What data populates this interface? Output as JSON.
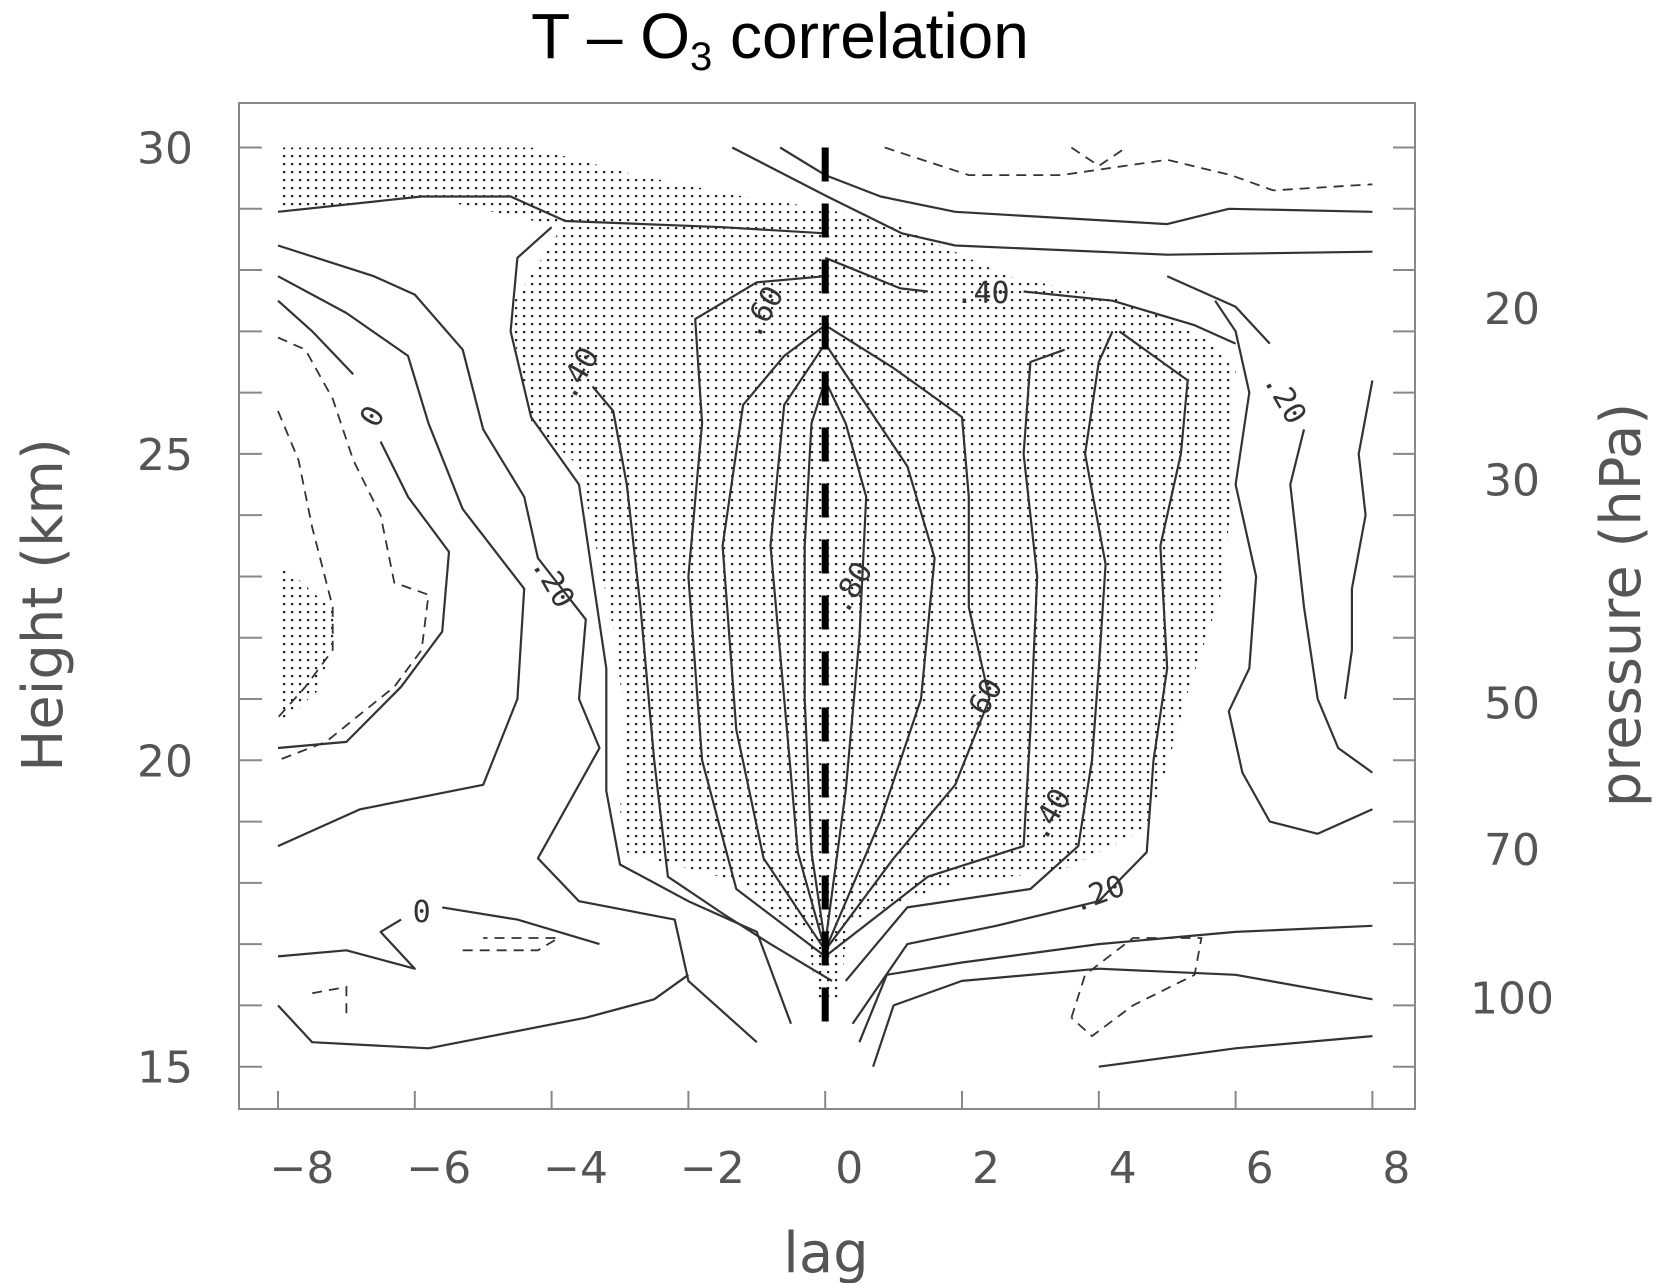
{
  "chart_data": {
    "type": "contour",
    "title": "T – O",
    "title_subscript": "3",
    "title_suffix": " correlation",
    "xlabel": "lag",
    "ylabel": "Height (km)",
    "ylabel_right": "pressure (hPa)",
    "xlim": [
      -9,
      9.4
    ],
    "ylim": [
      14.3,
      30.7
    ],
    "x_ticks": [
      -8,
      -6,
      -4,
      -2,
      0,
      2,
      4,
      6,
      8
    ],
    "x_tick_labels": [
      "−8",
      "−6",
      "−4",
      "−2",
      "0",
      "2",
      "4",
      "6",
      "8"
    ],
    "y_ticks": [
      15,
      20,
      25,
      30
    ],
    "y_tick_labels": [
      "15",
      "20",
      "25",
      "30"
    ],
    "y_minor_ticks": [
      15,
      16,
      17,
      18,
      19,
      20,
      21,
      22,
      23,
      24,
      25,
      26,
      27,
      28,
      29,
      30
    ],
    "right_ticks": [
      {
        "label": "20",
        "km": 27.38
      },
      {
        "label": "30",
        "km": 24.58
      },
      {
        "label": "50",
        "km": 20.94
      },
      {
        "label": "70",
        "km": 18.55
      },
      {
        "label": "100",
        "km": 16.13
      }
    ],
    "grid": false,
    "stipple_regions": [
      [
        [
          -7.95,
          30
        ],
        [
          -4.3,
          30
        ],
        [
          -2.76,
          29.55
        ],
        [
          -1.2,
          29.2
        ],
        [
          0,
          29.0
        ],
        [
          1.12,
          28.7
        ],
        [
          2.67,
          27.9
        ],
        [
          4.23,
          27.55
        ],
        [
          5.0,
          27.2
        ],
        [
          5.62,
          26.85
        ],
        [
          6.0,
          26.35
        ],
        [
          5.93,
          25.5
        ],
        [
          5.93,
          24.1
        ],
        [
          5.78,
          22.7
        ],
        [
          5.31,
          21.15
        ],
        [
          5.0,
          19.9
        ],
        [
          4.7,
          18.9
        ],
        [
          3.45,
          18.2
        ],
        [
          1.9,
          18.0
        ],
        [
          1.12,
          17.7
        ],
        [
          0.34,
          17.35
        ],
        [
          0.2,
          16.1
        ],
        [
          -0.12,
          16.1
        ],
        [
          -0.27,
          17.2
        ],
        [
          -0.74,
          17.5
        ],
        [
          -1.2,
          18.0
        ],
        [
          -2.9,
          18.5
        ],
        [
          -3.0,
          19.2
        ],
        [
          -2.9,
          20.3
        ],
        [
          -3.07,
          22.0
        ],
        [
          -3.6,
          24.8
        ],
        [
          -4.3,
          25.5
        ],
        [
          -4.55,
          26.9
        ],
        [
          -4.6,
          27.4
        ],
        [
          -3.85,
          28.7
        ],
        [
          -5.86,
          29.2
        ],
        [
          -7.95,
          28.95
        ]
      ],
      [
        [
          -7.95,
          23.2
        ],
        [
          -7.1,
          22.35
        ],
        [
          -7.4,
          21.15
        ],
        [
          -7.95,
          20.6
        ]
      ]
    ],
    "reference_line": {
      "lag": 0,
      "km_range": [
        15.6,
        30
      ],
      "style": "thick-dashed"
    },
    "contours_solid": [
      [
        [
          0,
          17
        ],
        [
          -0.2,
          18.5
        ],
        [
          -0.3,
          21
        ],
        [
          -0.3,
          23.5
        ],
        [
          -0.2,
          25.5
        ],
        [
          0,
          26.2
        ],
        [
          0.3,
          25.5
        ],
        [
          0.6,
          24.3
        ],
        [
          0.5,
          22
        ],
        [
          0.3,
          19.5
        ],
        [
          0,
          17
        ]
      ],
      [
        [
          0,
          16.9
        ],
        [
          -0.4,
          18.5
        ],
        [
          -0.6,
          21
        ],
        [
          -0.8,
          23.5
        ],
        [
          -0.6,
          25.8
        ],
        [
          0,
          26.8
        ],
        [
          0.6,
          25.8
        ],
        [
          1.2,
          24.8
        ],
        [
          1.6,
          23.3
        ],
        [
          1.4,
          21
        ],
        [
          0.8,
          19
        ],
        [
          0,
          16.9
        ]
      ],
      [
        [
          0,
          16.9
        ],
        [
          -0.9,
          18.4
        ],
        [
          -1.3,
          20.5
        ],
        [
          -1.5,
          23.5
        ],
        [
          -1.2,
          25.8
        ],
        [
          -0.6,
          26.6
        ],
        [
          0,
          27.1
        ],
        [
          1.0,
          26.4
        ],
        [
          2.0,
          25.6
        ],
        [
          2.1,
          24.3
        ],
        [
          2.1,
          22.5
        ],
        [
          2.4,
          21
        ],
        [
          1.9,
          19.6
        ],
        [
          1.0,
          18.4
        ],
        [
          0,
          16.9
        ]
      ],
      [
        [
          0,
          16.8
        ],
        [
          -1.3,
          17.9
        ],
        [
          -1.8,
          20
        ],
        [
          -2.0,
          23
        ],
        [
          -1.8,
          25.5
        ],
        [
          -1.9,
          27.2
        ],
        [
          -1.0,
          27.8
        ],
        [
          0,
          27.9
        ]
      ],
      [
        [
          0,
          16.8
        ],
        [
          1.5,
          18.1
        ],
        [
          2.9,
          18.6
        ],
        [
          3.0,
          20.5
        ],
        [
          3.1,
          23
        ],
        [
          2.9,
          25
        ],
        [
          3.0,
          26.5
        ],
        [
          3.5,
          26.7
        ]
      ],
      [
        [
          0.1,
          16.4
        ],
        [
          -0.8,
          17.0
        ],
        [
          -1.5,
          17.5
        ],
        [
          -2.3,
          18.1
        ],
        [
          -2.5,
          20
        ],
        [
          -2.7,
          22.5
        ],
        [
          -2.9,
          24.5
        ],
        [
          -3.1,
          25.7
        ],
        [
          -3.4,
          26.1
        ]
      ],
      [
        [
          0.3,
          16.4
        ],
        [
          1.2,
          17.6
        ],
        [
          3.0,
          17.9
        ],
        [
          3.7,
          18.6
        ],
        [
          3.9,
          20
        ],
        [
          4.0,
          21.5
        ],
        [
          4.1,
          23.2
        ],
        [
          3.8,
          25
        ],
        [
          4.0,
          26.5
        ],
        [
          4.2,
          27
        ]
      ],
      [
        [
          -0.5,
          15.7
        ],
        [
          -1.0,
          17.2
        ],
        [
          -2.0,
          17.7
        ],
        [
          -3.0,
          18.3
        ],
        [
          -3.2,
          19.5
        ],
        [
          -3.2,
          21.5
        ],
        [
          -3.4,
          23
        ],
        [
          -3.6,
          24.5
        ],
        [
          -4.3,
          25.6
        ],
        [
          -4.6,
          27
        ],
        [
          -4.5,
          28.2
        ],
        [
          -4.0,
          28.7
        ]
      ],
      [
        [
          0.4,
          15.7
        ],
        [
          1.2,
          17.0
        ],
        [
          2.5,
          17.3
        ],
        [
          4.0,
          17.7
        ],
        [
          4.7,
          18.5
        ],
        [
          4.8,
          20
        ],
        [
          5.0,
          21.5
        ],
        [
          4.9,
          23.5
        ],
        [
          5.2,
          25
        ],
        [
          5.3,
          26.2
        ],
        [
          4.3,
          27.0
        ]
      ],
      [
        [
          0,
          28.2
        ],
        [
          1.1,
          27.7
        ],
        [
          1.5,
          27.65
        ]
      ],
      [
        [
          2.9,
          27.65
        ],
        [
          4.2,
          27.5
        ],
        [
          5.4,
          27.1
        ],
        [
          6.0,
          26.8
        ]
      ],
      [
        [
          5.0,
          27.9
        ],
        [
          6.0,
          27.4
        ],
        [
          6.5,
          26.8
        ]
      ],
      [
        [
          7.0,
          25.4
        ],
        [
          6.8,
          24.5
        ],
        [
          6.9,
          23.5
        ],
        [
          7.0,
          22.5
        ],
        [
          7.2,
          21
        ],
        [
          7.5,
          20.2
        ],
        [
          8,
          19.8
        ]
      ],
      [
        [
          -1.36,
          30
        ],
        [
          0.03,
          29.2
        ],
        [
          1.12,
          28.6
        ],
        [
          1.9,
          28.4
        ],
        [
          5,
          28.25
        ],
        [
          8,
          28.3
        ]
      ],
      [
        [
          -0.66,
          30
        ],
        [
          0,
          29.55
        ],
        [
          0.81,
          29.2
        ],
        [
          1.9,
          28.95
        ],
        [
          3.45,
          28.85
        ],
        [
          5,
          28.75
        ],
        [
          5.9,
          29.0
        ],
        [
          8,
          28.95
        ]
      ],
      [
        [
          -8,
          28.95
        ],
        [
          -5.9,
          29.2
        ],
        [
          -4.6,
          29.2
        ],
        [
          -3.8,
          28.8
        ],
        [
          -1.5,
          28.7
        ],
        [
          0,
          28.6
        ]
      ],
      [
        [
          5.7,
          27.5
        ],
        [
          6.0,
          27
        ],
        [
          6.2,
          26
        ],
        [
          6.0,
          24.5
        ],
        [
          6.3,
          23
        ],
        [
          6.2,
          21.5
        ],
        [
          5.9,
          20.8
        ],
        [
          6.1,
          19.8
        ],
        [
          6.5,
          19
        ],
        [
          7.2,
          18.8
        ],
        [
          8,
          19.2
        ]
      ],
      [
        [
          8,
          26.2
        ],
        [
          7.8,
          25
        ],
        [
          7.9,
          24
        ],
        [
          7.7,
          22.8
        ],
        [
          7.7,
          21.8
        ],
        [
          7.6,
          21
        ]
      ],
      [
        [
          0.5,
          15.4
        ],
        [
          0.9,
          16.5
        ],
        [
          2,
          16.7
        ],
        [
          4,
          17.0
        ],
        [
          6,
          17.2
        ],
        [
          8,
          17.3
        ]
      ],
      [
        [
          0.7,
          15.0
        ],
        [
          1.0,
          16.0
        ],
        [
          2.0,
          16.4
        ],
        [
          4.0,
          16.6
        ],
        [
          6.0,
          16.5
        ],
        [
          8,
          16.1
        ]
      ],
      [
        [
          4,
          15
        ],
        [
          6,
          15.3
        ],
        [
          8,
          15.5
        ]
      ],
      [
        [
          -8,
          28.4
        ],
        [
          -6.6,
          27.9
        ],
        [
          -6.0,
          27.6
        ],
        [
          -5.3,
          26.7
        ],
        [
          -5.0,
          25.4
        ],
        [
          -4.4,
          24.3
        ],
        [
          -4.2,
          23.3
        ],
        [
          -3.5,
          22.3
        ],
        [
          -3.6,
          21
        ],
        [
          -3.3,
          20.2
        ],
        [
          -4.2,
          18.4
        ],
        [
          -3.6,
          17.7
        ],
        [
          -2.2,
          17.4
        ],
        [
          -2.0,
          16.4
        ],
        [
          -1.0,
          15.4
        ]
      ],
      [
        [
          -8,
          27.9
        ],
        [
          -7.0,
          27.3
        ],
        [
          -6.1,
          26.6
        ],
        [
          -5.8,
          25.5
        ],
        [
          -5.3,
          24.1
        ],
        [
          -4.4,
          22.8
        ],
        [
          -4.5,
          21
        ],
        [
          -5.0,
          19.6
        ],
        [
          -6.8,
          19.2
        ],
        [
          -8,
          18.6
        ]
      ],
      [
        [
          -8,
          27.5
        ],
        [
          -7.5,
          27.0
        ],
        [
          -6.9,
          26.3
        ]
      ],
      [
        [
          -6.5,
          25.2
        ],
        [
          -6.1,
          24.3
        ],
        [
          -5.5,
          23.4
        ],
        [
          -5.6,
          22.1
        ],
        [
          -6.2,
          21.2
        ],
        [
          -7.0,
          20.3
        ],
        [
          -8,
          20.2
        ]
      ],
      [
        [
          -8,
          16.0
        ],
        [
          -7.5,
          15.4
        ],
        [
          -5.8,
          15.3
        ],
        [
          -3.5,
          15.8
        ],
        [
          -2.5,
          16.1
        ],
        [
          -2.0,
          16.5
        ]
      ],
      [
        [
          -8,
          16.8
        ],
        [
          -7,
          16.9
        ],
        [
          -6,
          16.6
        ],
        [
          -6.5,
          17.2
        ],
        [
          -6.2,
          17.4
        ]
      ],
      [
        [
          -5.6,
          17.6
        ],
        [
          -4.5,
          17.4
        ],
        [
          -3.3,
          17.0
        ]
      ]
    ],
    "contours_dashed": [
      [
        [
          0.87,
          30
        ],
        [
          2.1,
          29.55
        ],
        [
          3.45,
          29.55
        ],
        [
          5,
          29.8
        ],
        [
          5.93,
          29.55
        ],
        [
          6.55,
          29.3
        ],
        [
          8,
          29.4
        ]
      ],
      [
        [
          3.6,
          30
        ],
        [
          4.0,
          29.7
        ],
        [
          4.4,
          30
        ]
      ],
      [
        [
          -8,
          26.9
        ],
        [
          -7.6,
          26.7
        ],
        [
          -7.2,
          25.9
        ],
        [
          -6.9,
          24.9
        ],
        [
          -6.5,
          24.0
        ],
        [
          -6.3,
          22.9
        ],
        [
          -5.8,
          22.7
        ],
        [
          -5.9,
          21.8
        ],
        [
          -6.3,
          21.2
        ],
        [
          -7.3,
          20.3
        ],
        [
          -8,
          20.0
        ]
      ],
      [
        [
          -8,
          25.7
        ],
        [
          -7.7,
          24.9
        ],
        [
          -7.5,
          23.8
        ],
        [
          -7.2,
          22.5
        ],
        [
          -7.2,
          21.8
        ],
        [
          -7.6,
          21.2
        ],
        [
          -8,
          20.7
        ]
      ],
      [
        [
          3.6,
          15.8
        ],
        [
          3.8,
          16.5
        ],
        [
          4.5,
          17.1
        ],
        [
          5.5,
          17.1
        ],
        [
          5.4,
          16.5
        ],
        [
          4.5,
          16.0
        ],
        [
          3.9,
          15.5
        ],
        [
          3.6,
          15.8
        ]
      ],
      [
        [
          -5.3,
          16.9
        ],
        [
          -4.2,
          16.9
        ],
        [
          -3.9,
          17.1
        ],
        [
          -5.0,
          17.1
        ]
      ],
      [
        [
          -7.5,
          16.2
        ],
        [
          -7,
          16.3
        ],
        [
          -7,
          15.8
        ]
      ]
    ],
    "contour_labels": [
      {
        "text": ".40",
        "lag": -3.6,
        "km": 26.3,
        "angle": -60
      },
      {
        "text": "0",
        "lag": -6.6,
        "km": 25.6,
        "angle": -60
      },
      {
        "text": ".20",
        "lag": -4.0,
        "km": 22.9,
        "angle": 60
      },
      {
        "text": ".60",
        "lag": -0.9,
        "km": 27.3,
        "angle": -60
      },
      {
        "text": ".40",
        "lag": 2.3,
        "km": 27.6,
        "angle": 0
      },
      {
        "text": ".80",
        "lag": 0.4,
        "km": 22.8,
        "angle": -60
      },
      {
        "text": ".60",
        "lag": 2.3,
        "km": 20.9,
        "angle": -60
      },
      {
        "text": ".40",
        "lag": 3.3,
        "km": 19.1,
        "angle": -60
      },
      {
        "text": ".20",
        "lag": 4.0,
        "km": 17.8,
        "angle": -20
      },
      {
        "text": ".20",
        "lag": 6.7,
        "km": 25.9,
        "angle": 60
      },
      {
        "text": "0",
        "lag": -5.9,
        "km": 17.5,
        "angle": 0
      }
    ]
  }
}
